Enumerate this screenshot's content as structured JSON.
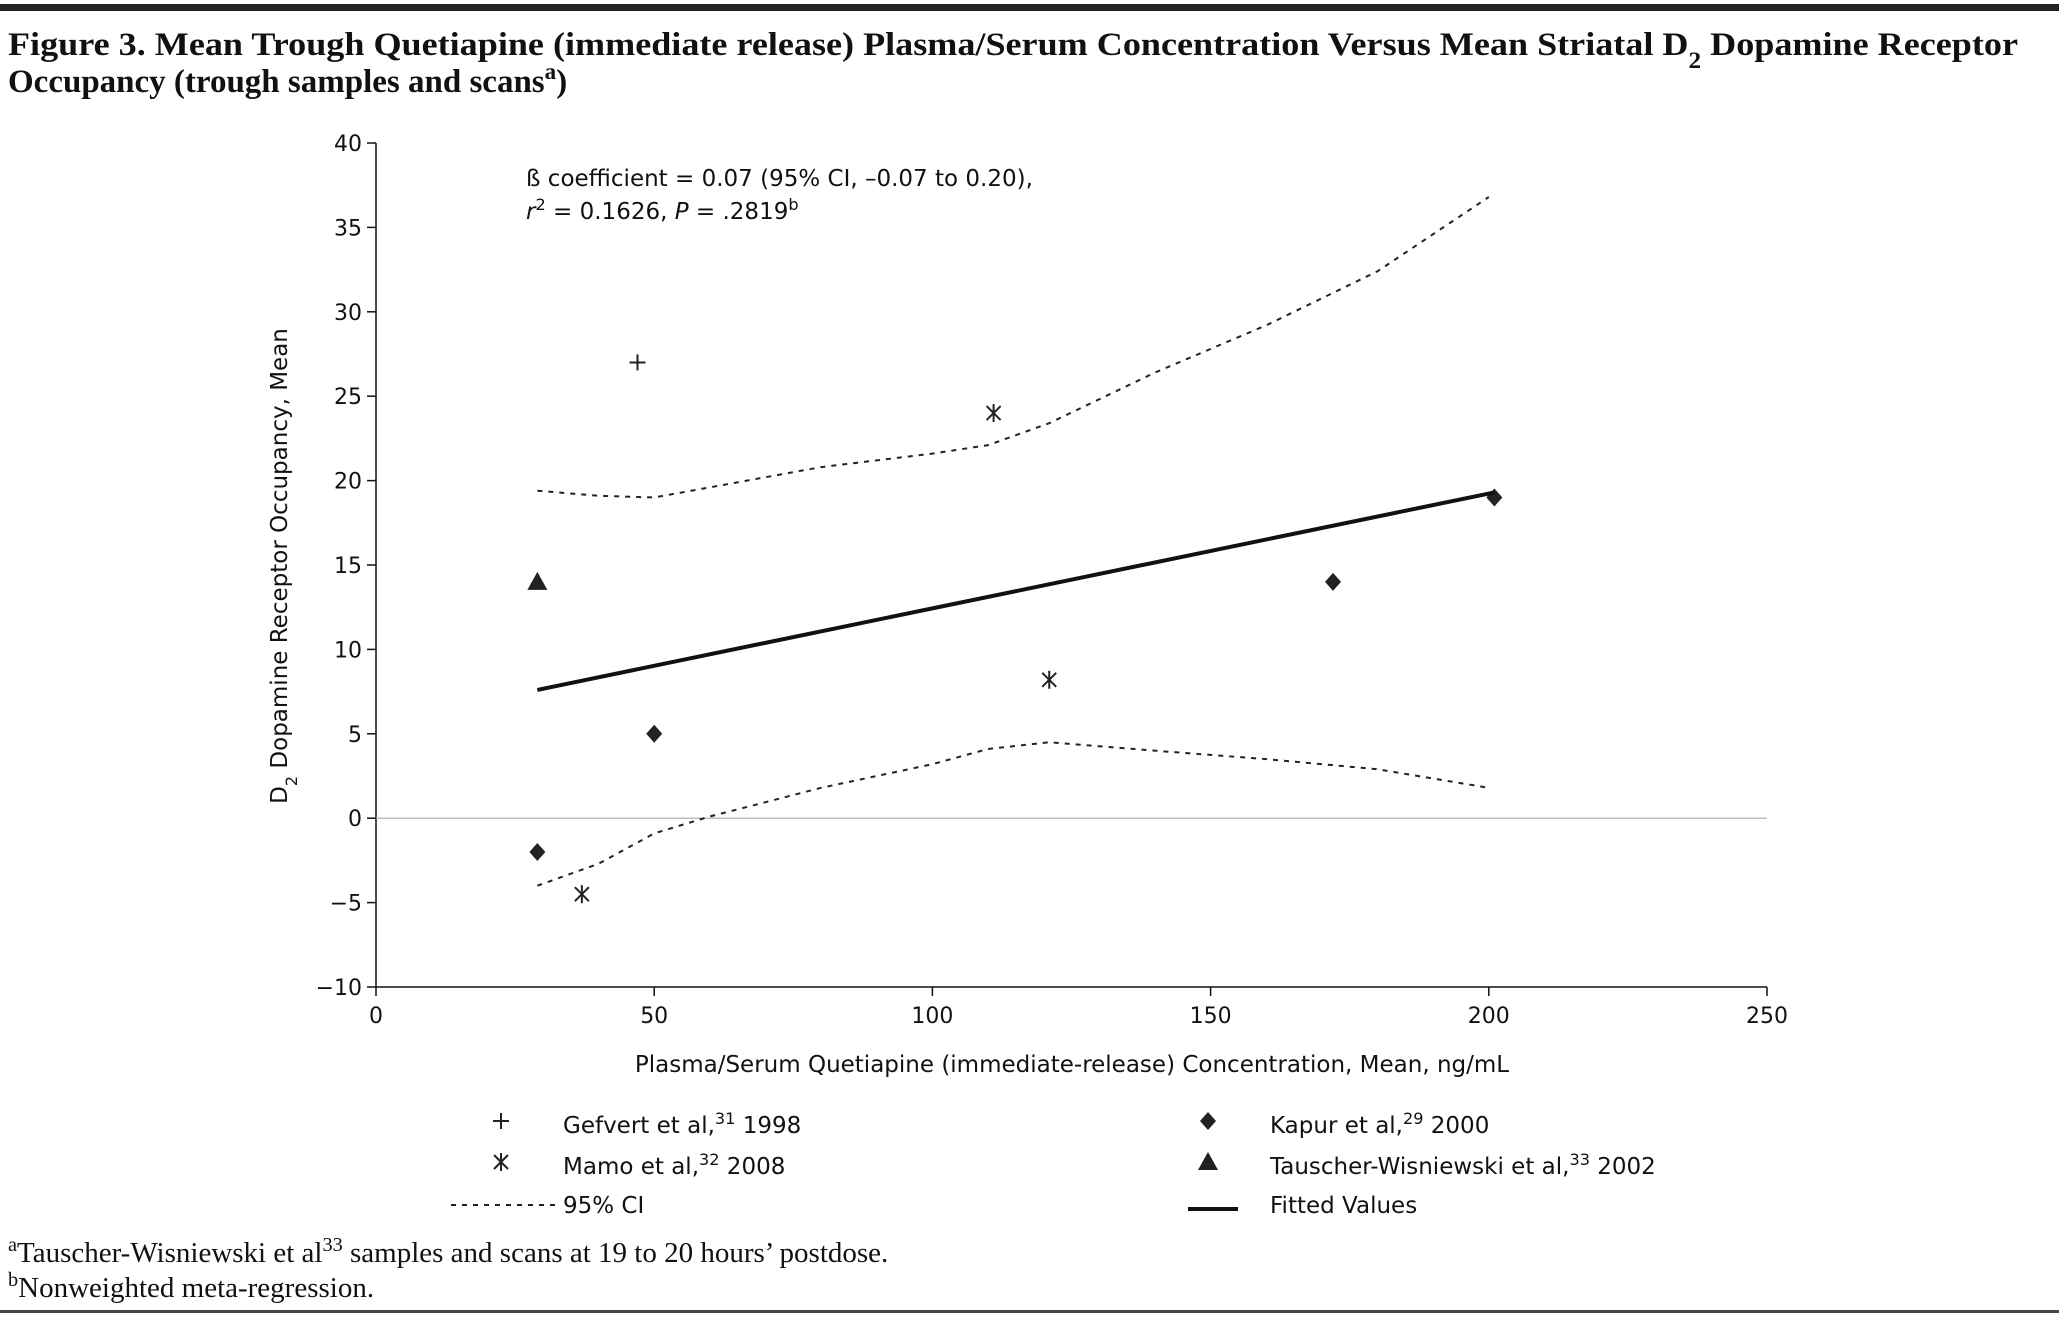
{
  "chart_data": {
    "type": "scatter",
    "title": [
      [
        "Figure 3. Mean Trough Quetiapine (immediate release) Plasma/Serum Concentration Versus Mean Striatal D",
        {
          "sub": "2"
        },
        " Dopamine Receptor"
      ],
      [
        "Occupancy (trough samples and scans",
        {
          "sup": "a"
        },
        ")"
      ]
    ],
    "annotation": [
      [
        "ß coefficient = 0.07 (95% CI, –0.07 to 0.20),"
      ],
      [
        {
          "i": "r"
        },
        {
          "sup": "2"
        },
        " = 0.1626, ",
        {
          "i": "P"
        },
        " = .2819",
        {
          "sup": "b"
        }
      ]
    ],
    "ylabel": [
      "D",
      {
        "sub": "2"
      },
      " Dopamine Receptor Occupancy, Mean"
    ],
    "xlabel": [
      "Plasma/Serum Quetiapine (immediate-release) Concentration, Mean, ng/mL"
    ],
    "xlim": [
      0,
      250
    ],
    "xticks": [
      0,
      50,
      100,
      150,
      200,
      250
    ],
    "ylim": [
      -10,
      40
    ],
    "yticks": [
      {
        "value": -10,
        "label": "−10"
      },
      {
        "value": -5,
        "label": "−5"
      },
      0,
      5,
      10,
      15,
      20,
      25,
      30,
      35,
      40
    ],
    "zero_line": true,
    "series": [
      {
        "name": [
          "Gefvert et al,",
          {
            "sup": "31"
          },
          " 1998"
        ],
        "marker": "plus",
        "color": "#222",
        "x": [
          47
        ],
        "values": [
          27
        ]
      },
      {
        "name": [
          "Kapur et al,",
          {
            "sup": "29"
          },
          " 2000"
        ],
        "marker": "diamond",
        "color": "#222",
        "x": [
          29,
          50,
          172,
          201
        ],
        "values": [
          -2,
          5,
          14,
          19
        ]
      },
      {
        "name": [
          "Mamo et al,",
          {
            "sup": "32"
          },
          " 2008"
        ],
        "marker": "asterisk",
        "color": "#222",
        "x": [
          37,
          111,
          121
        ],
        "values": [
          -4.5,
          24,
          8.2
        ]
      },
      {
        "name": [
          "Tauscher-Wisniewski et al,",
          {
            "sup": "33"
          },
          " 2002"
        ],
        "marker": "triangle",
        "color": "#222",
        "x": [
          29
        ],
        "values": [
          14
        ]
      },
      {
        "name": [
          "95% CI"
        ],
        "style": "dashed",
        "color": "#222",
        "x": [
          29,
          40,
          50,
          60,
          80,
          100,
          110,
          121,
          140,
          160,
          180,
          200
        ],
        "upper": [
          19.4,
          19.1,
          19.0,
          19.6,
          20.8,
          21.6,
          22.1,
          23.4,
          26.4,
          29.2,
          32.4,
          36.8
        ],
        "lower": [
          -4,
          -2.7,
          -0.9,
          0.1,
          1.8,
          3.2,
          4.1,
          4.5,
          4.0,
          3.5,
          2.9,
          1.8
        ]
      },
      {
        "name": [
          "Fitted Values"
        ],
        "style": "solid",
        "color": "#111",
        "x": [
          29,
          201
        ],
        "values": [
          7.6,
          19.3
        ]
      }
    ],
    "footnotes": [
      [
        {
          "sup": "a"
        },
        "Tauscher-Wisniewski et al",
        {
          "sup": "33"
        },
        " samples and scans at 19 to 20 hours’ postdose."
      ],
      [
        {
          "sup": "b"
        },
        "Nonweighted meta-regression."
      ]
    ]
  }
}
